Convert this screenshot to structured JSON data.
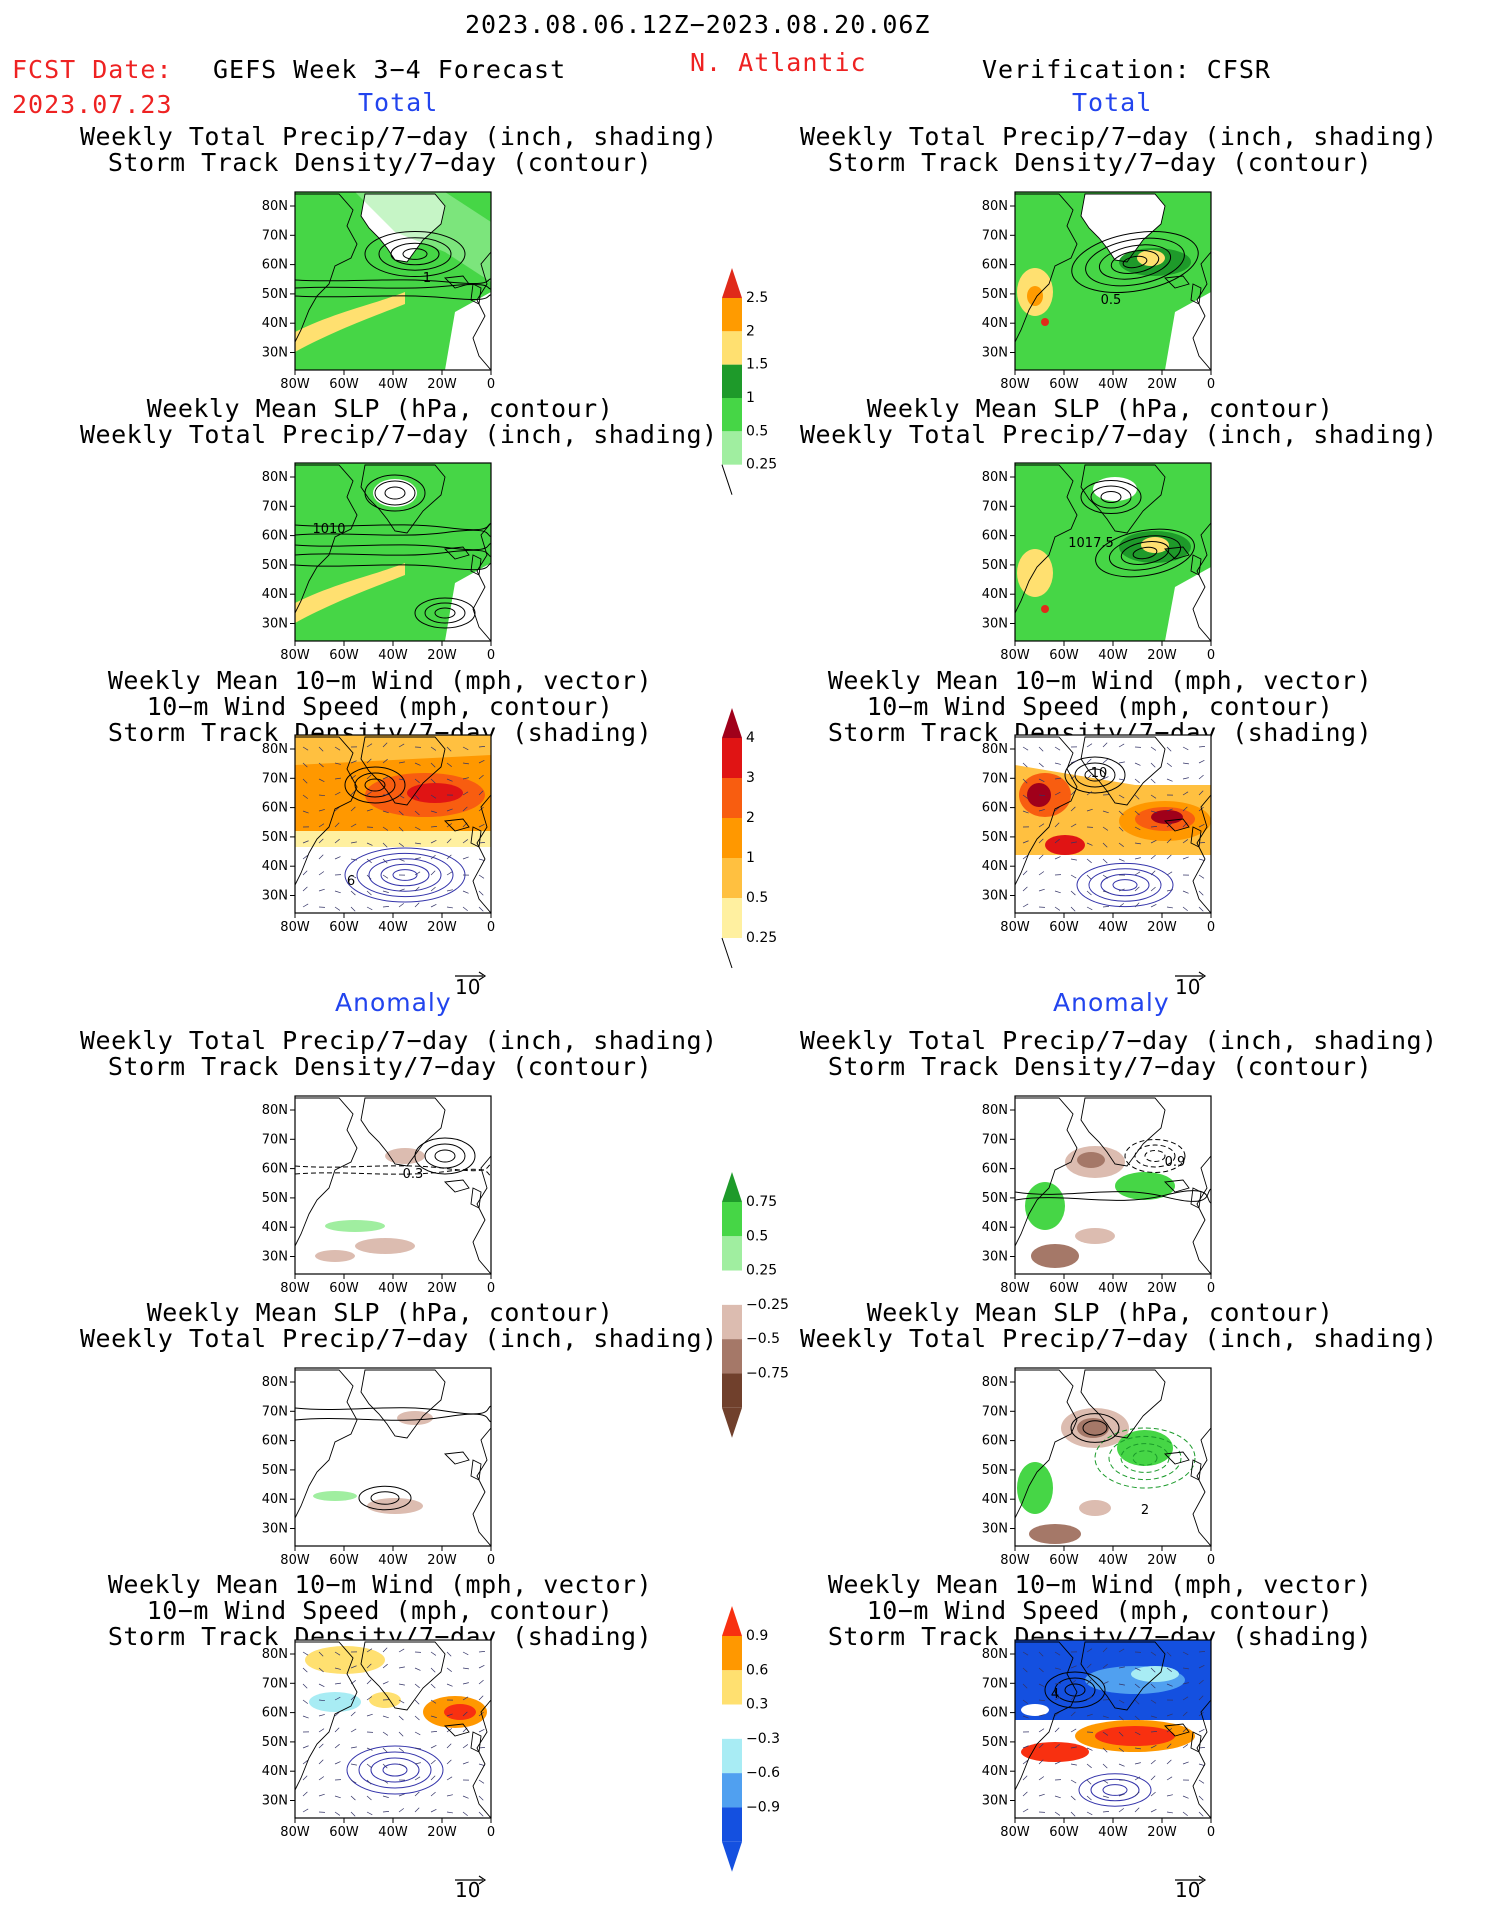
{
  "header": {
    "period": "2023.08.06.12Z−2023.08.20.06Z",
    "fcst_label": "FCST Date:",
    "fcst_date": "2023.07.23",
    "model": "GEFS Week 3−4 Forecast",
    "region": "N. Atlantic",
    "verification": "Verification: CFSR"
  },
  "columns": {
    "left_total": "Total",
    "right_total": "Total",
    "left_anom": "Anomaly",
    "right_anom": "Anomaly"
  },
  "titles": {
    "t1": "Weekly Total Precip/7−day (inch, shading)\nStorm Track Density/7−day (contour)",
    "t2": "Weekly Mean SLP (hPa, contour)\nWeekly Total Precip/7−day (inch, shading)",
    "t3": "Weekly Mean 10−m Wind (mph, vector)\n10−m Wind Speed (mph, contour)\nStorm Track Density/7−day (shading)"
  },
  "axes": {
    "lat_labels": [
      "80N",
      "70N",
      "60N",
      "50N",
      "40N",
      "30N"
    ],
    "lon_labels": [
      "80W",
      "60W",
      "40W",
      "20W",
      "0"
    ]
  },
  "vector_ref": "10",
  "colorbars": {
    "precip_total": {
      "labels": [
        "2.5",
        "2",
        "1.5",
        "1",
        "0.5",
        "0.25"
      ],
      "colors": [
        "#e02a1a",
        "#ff9b00",
        "#ffe070",
        "#1e9a2a",
        "#46d646",
        "#a0eea0"
      ]
    },
    "track_total": {
      "labels": [
        "4",
        "3",
        "2",
        "1",
        "0.5",
        "0.25"
      ],
      "colors": [
        "#a0001a",
        "#e01414",
        "#f85d10",
        "#ff9800",
        "#ffc040",
        "#fff0a0"
      ]
    },
    "precip_anom": {
      "labels": [
        "0.75",
        "0.5",
        "0.25",
        "−0.25",
        "−0.5",
        "−0.75"
      ],
      "colors": [
        "#1e9a2a",
        "#46d646",
        "#a0eea0",
        "#ffffff",
        "#dcbcb0",
        "#a57868",
        "#70402c"
      ]
    },
    "track_anom": {
      "labels": [
        "0.9",
        "0.6",
        "0.3",
        "−0.3",
        "−0.6",
        "−0.9"
      ],
      "colors": [
        "#f83010",
        "#ff9800",
        "#ffe070",
        "#ffffff",
        "#a8ecf4",
        "#50a0f0",
        "#1450e0"
      ]
    }
  },
  "contour_labels": {
    "p1": "1",
    "p2": "1010",
    "p3": "6",
    "p7": "0.5",
    "p8": "1017.5",
    "p9": "10",
    "p4": "0.3",
    "p10": "0.9",
    "p11": "2",
    "p12": "4"
  }
}
